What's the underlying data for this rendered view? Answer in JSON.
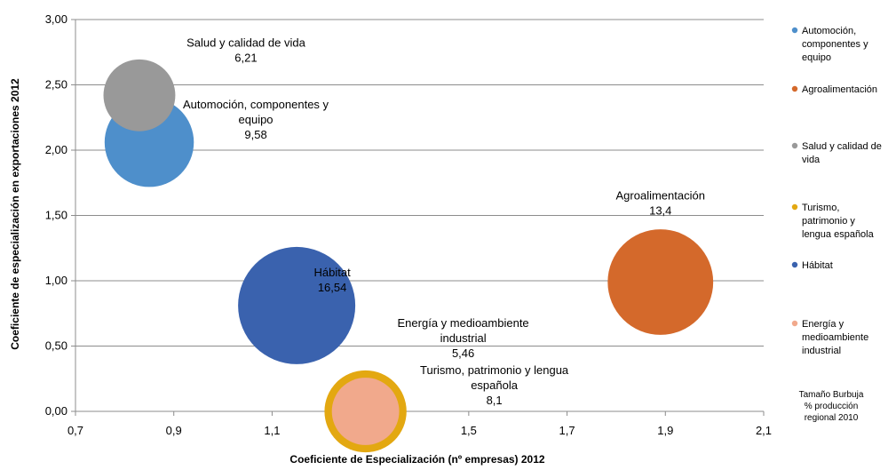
{
  "chart_data": {
    "type": "bubble",
    "title": "",
    "xlabel": "Coeficiente de Especialización (nº empresas) 2012",
    "ylabel": "Coeficiente de especialización en exportaciones 2012",
    "xlim": [
      0.7,
      2.1
    ],
    "ylim": [
      0,
      3
    ],
    "x_ticks": [
      "0,7",
      "0,9",
      "1,1",
      "1,3",
      "1,5",
      "1,7",
      "1,9",
      "2,1"
    ],
    "y_ticks": [
      "0,00",
      "0,50",
      "1,00",
      "1,50",
      "2,00",
      "2,50",
      "3,00"
    ],
    "grid": "horizontal",
    "legend_position": "right",
    "size_note": [
      "Tamaño Burbuja",
      "% producción",
      "regional 2010"
    ],
    "series": [
      {
        "name": "Automoción, componentes y equipo",
        "legend_lines": [
          "Automoción,",
          "componentes y",
          "equipo"
        ],
        "label_lines": [
          "Automoción, componentes y",
          "equipo"
        ],
        "value_label": "9,58",
        "x": 0.85,
        "y": 2.06,
        "size": 9.58,
        "color": "#4E8FCB"
      },
      {
        "name": "Agroalimentación",
        "legend_lines": [
          "Agroalimentación"
        ],
        "label_lines": [
          "Agroalimentación"
        ],
        "value_label": "13,4",
        "x": 1.89,
        "y": 0.99,
        "size": 13.4,
        "color": "#D4692B"
      },
      {
        "name": "Salud y calidad de vida",
        "legend_lines": [
          "Salud y calidad de",
          "vida"
        ],
        "label_lines": [
          "Salud y calidad de vida"
        ],
        "value_label": "6,21",
        "x": 0.83,
        "y": 2.42,
        "size": 6.21,
        "color": "#999999"
      },
      {
        "name": "Turismo, patrimonio y lengua española",
        "legend_lines": [
          "Turismo,",
          "patrimonio y",
          "lengua española"
        ],
        "label_lines": [
          "Turismo, patrimonio y lengua",
          "española"
        ],
        "value_label": "8,1",
        "x": 1.29,
        "y": 0.0,
        "size": 8.1,
        "color": "#E3A811"
      },
      {
        "name": "Hábitat",
        "legend_lines": [
          "Hábitat"
        ],
        "label_lines": [
          "Hábitat"
        ],
        "value_label": "16,54",
        "x": 1.15,
        "y": 0.81,
        "size": 16.54,
        "color": "#3A62AE"
      },
      {
        "name": "Energía y medioambiente industrial",
        "legend_lines": [
          "Energía y",
          "medioambiente",
          "industrial"
        ],
        "label_lines": [
          "Energía y medioambiente",
          "industrial"
        ],
        "value_label": "5,46",
        "x": 1.29,
        "y": 0.0,
        "size": 5.46,
        "color": "#F1A98C"
      }
    ]
  }
}
